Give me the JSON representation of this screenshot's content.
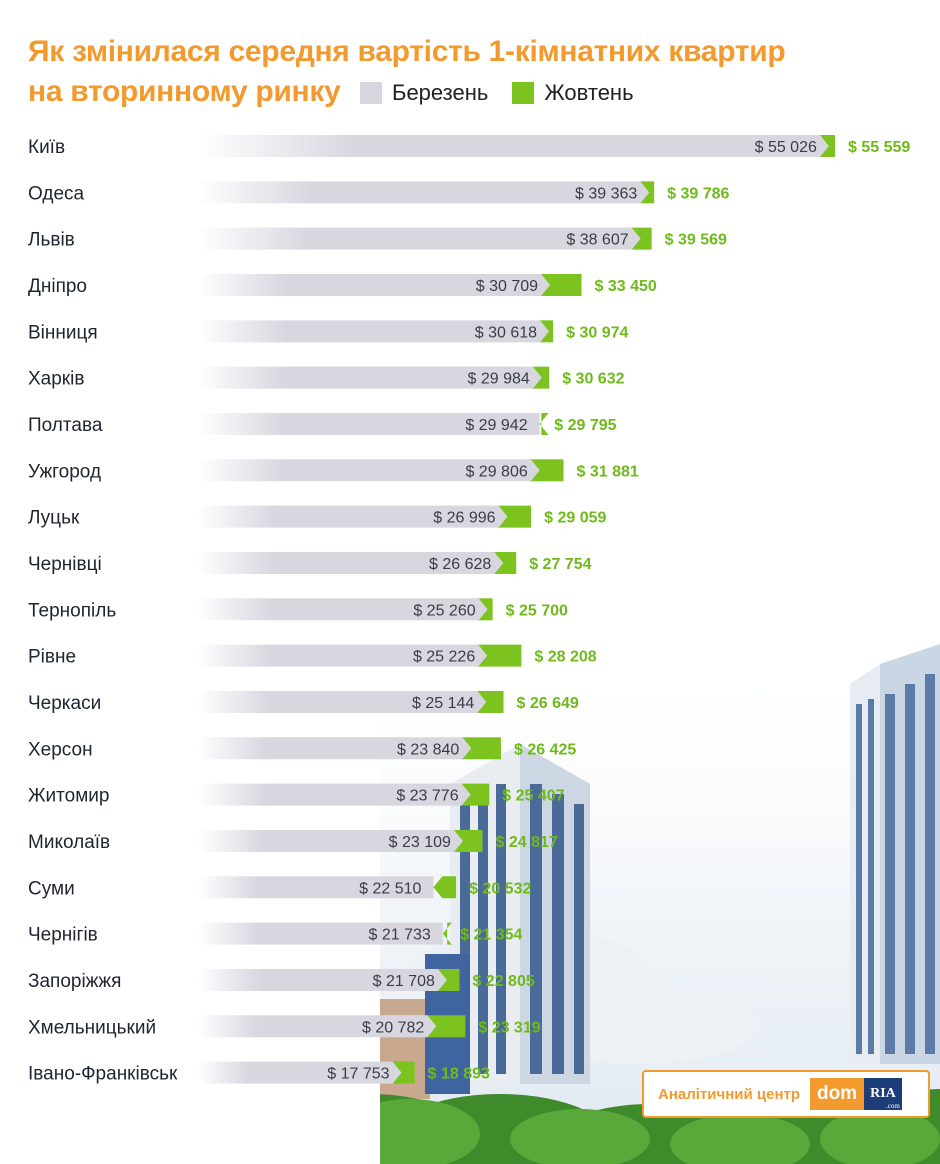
{
  "title_line1": "Як змінилася середня вартість 1-кімнатних квартир",
  "title_line2": "на вторинному ринку",
  "legend": {
    "march": "Березень",
    "october": "Жовтень"
  },
  "colors": {
    "march_bar": "#d8d7e0",
    "october_bar": "#7cc31f",
    "october_text": "#6fba1a",
    "title": "#f29a2e"
  },
  "brand": {
    "center": "Аналітичний центр",
    "dom": "dom",
    "ria": "RIA",
    "ria_sub": ".com"
  },
  "chart_data": {
    "type": "bar",
    "orientation": "horizontal",
    "series": [
      {
        "name": "Березень",
        "values": [
          55026,
          39363,
          38607,
          30709,
          30618,
          29984,
          29942,
          29806,
          26996,
          26628,
          25260,
          25226,
          25144,
          23840,
          23776,
          23109,
          22510,
          21733,
          21708,
          20782,
          17753
        ]
      },
      {
        "name": "Жовтень",
        "values": [
          55559,
          39786,
          39569,
          33450,
          30974,
          30632,
          29795,
          31881,
          29059,
          27754,
          25700,
          28208,
          26649,
          26425,
          25407,
          24817,
          20532,
          21354,
          22805,
          23319,
          18893
        ]
      }
    ],
    "categories": [
      "Київ",
      "Одеса",
      "Львів",
      "Дніпро",
      "Вінниця",
      "Харків",
      "Полтава",
      "Ужгород",
      "Луцьк",
      "Чернівці",
      "Тернопіль",
      "Рівне",
      "Черкаси",
      "Херсон",
      "Житомир",
      "Миколаїв",
      "Суми",
      "Чернігів",
      "Запоріжжя",
      "Хмельницький",
      "Івано-Франківськ"
    ],
    "labels_march": [
      "$ 55 026",
      "$ 39 363",
      "$ 38 607",
      "$ 30 709",
      "$ 30 618",
      "$ 29 984",
      "$ 29 942",
      "$ 29 806",
      "$ 26 996",
      "$ 26 628",
      "$ 25 260",
      "$ 25 226",
      "$ 25 144",
      "$ 23 840",
      "$ 23 776",
      "$ 23 109",
      "$ 22 510",
      "$ 21 733",
      "$ 21 708",
      "$ 20 782",
      "$ 17 753"
    ],
    "labels_october": [
      "$ 55 559",
      "$ 39 786",
      "$ 39 569",
      "$ 33 450",
      "$ 30 974",
      "$ 30 632",
      "$ 29 795",
      "$ 31 881",
      "$ 29 059",
      "$ 27 754",
      "$ 25 700",
      "$ 28 208",
      "$ 26 649",
      "$ 26 425",
      "$ 25 407",
      "$ 24 817",
      "$ 20 532",
      "$ 21 354",
      "$ 22 805",
      "$ 23 319",
      "$ 18 893"
    ]
  }
}
